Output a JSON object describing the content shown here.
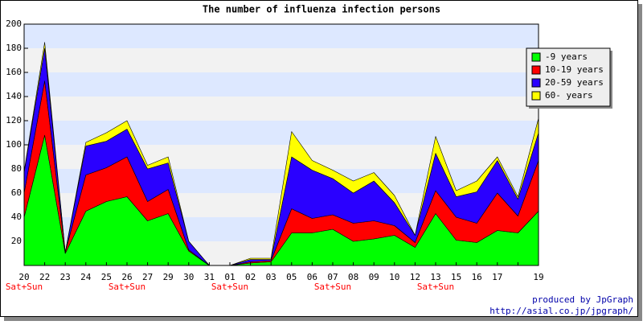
{
  "chart_data": {
    "type": "area",
    "stacked": true,
    "title": "The number of influenza infection persons",
    "categories": [
      "20",
      "22",
      "23",
      "24",
      "25",
      "26",
      "27",
      "29",
      "30",
      "31",
      "01",
      "02",
      "03",
      "05",
      "06",
      "07",
      "08",
      "09",
      "10",
      "12",
      "13",
      "15",
      "16",
      "17",
      null,
      "19"
    ],
    "sublabels": [
      "Sat+Sun",
      null,
      null,
      null,
      null,
      "Sat+Sun",
      null,
      null,
      null,
      null,
      "Sat+Sun",
      null,
      null,
      null,
      null,
      "Sat+Sun",
      null,
      null,
      null,
      null,
      "Sat+Sun",
      null,
      null,
      null,
      null,
      null
    ],
    "sublabel_color": "#ff0000",
    "series": [
      {
        "name": "-9 years",
        "color": "#00ff00",
        "values": [
          40,
          108,
          10,
          45,
          53,
          57,
          37,
          43,
          12,
          0,
          0,
          2,
          3,
          27,
          27,
          30,
          20,
          22,
          25,
          15,
          43,
          21,
          19,
          29,
          27,
          45
        ]
      },
      {
        "name": "10-19 years",
        "color": "#ff0000",
        "values": [
          20,
          45,
          1,
          30,
          28,
          33,
          16,
          20,
          1,
          0,
          0,
          1,
          1,
          20,
          12,
          12,
          15,
          15,
          8,
          4,
          19,
          19,
          16,
          31,
          14,
          42
        ]
      },
      {
        "name": "20-59 years",
        "color": "#2a00ff",
        "values": [
          17,
          27,
          0,
          24,
          22,
          23,
          27,
          22,
          7,
          0,
          0,
          2,
          1,
          43,
          40,
          30,
          25,
          33,
          19,
          6,
          31,
          17,
          26,
          27,
          14,
          23
        ]
      },
      {
        "name": "60- years",
        "color": "#ffff00",
        "values": [
          1,
          5,
          0,
          3,
          7,
          7,
          3,
          5,
          0,
          0,
          0,
          1,
          1,
          21,
          8,
          7,
          10,
          7,
          6,
          0,
          14,
          5,
          9,
          3,
          2,
          12
        ]
      }
    ],
    "ylim": [
      0,
      200
    ],
    "yticks": [
      20,
      40,
      60,
      80,
      100,
      120,
      140,
      160,
      180,
      200
    ],
    "grid_bands": [
      "#dde8ff",
      "#f2f2f2"
    ],
    "legend": "top-right"
  },
  "footer": [
    "produced by JpGraph",
    "http://asial.co.jp/jpgraph/"
  ]
}
